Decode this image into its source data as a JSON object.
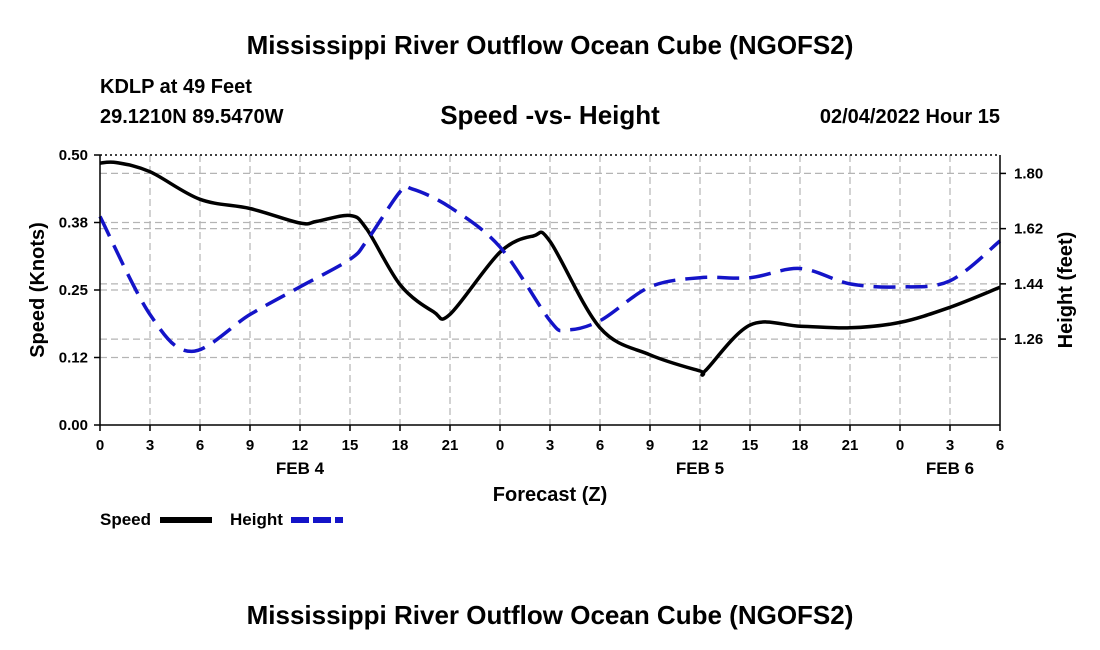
{
  "header": {
    "title": "Mississippi River Outflow Ocean Cube (NGOFS2)",
    "station": "KDLP at 49 Feet",
    "coords": "29.1210N  89.5470W",
    "subtitle": "Speed -vs- Height",
    "datetime": "02/04/2022 Hour 15"
  },
  "footer": {
    "title": "Mississippi River Outflow Ocean Cube (NGOFS2)"
  },
  "legend": {
    "speed_label": "Speed",
    "height_label": "Height"
  },
  "colors": {
    "speed": "#000000",
    "height": "#1414c8",
    "grid": "#b4b4b4",
    "axis": "#000000"
  },
  "chart_data": {
    "type": "line",
    "xlabel": "Forecast (Z)",
    "ylabel_left": "Speed (Knots)",
    "ylabel_right": "Height (feet)",
    "x_range": [
      0,
      54
    ],
    "x_tick_labels": [
      "0",
      "3",
      "6",
      "9",
      "12",
      "15",
      "18",
      "21",
      "0",
      "3",
      "6",
      "9",
      "12",
      "15",
      "18",
      "21",
      "0",
      "3",
      "6"
    ],
    "date_labels": [
      {
        "label": "FEB 4",
        "x": 12
      },
      {
        "label": "FEB 5",
        "x": 36
      },
      {
        "label": "FEB 6",
        "x": 51
      }
    ],
    "ylim_left": [
      0,
      0.5
    ],
    "y_ticks_left": [
      {
        "value": 0.0,
        "label": "0.00"
      },
      {
        "value": 0.125,
        "label": "0.12"
      },
      {
        "value": 0.25,
        "label": "0.25"
      },
      {
        "value": 0.375,
        "label": "0.38"
      },
      {
        "value": 0.5,
        "label": "0.50"
      }
    ],
    "ylim_right": [
      0.98,
      1.86
    ],
    "y_ticks_right": [
      {
        "value": 1.26,
        "label": "1.26"
      },
      {
        "value": 1.44,
        "label": "1.44"
      },
      {
        "value": 1.62,
        "label": "1.62"
      },
      {
        "value": 1.8,
        "label": "1.80"
      }
    ],
    "series": [
      {
        "name": "Speed",
        "axis": "left",
        "style": "solid",
        "x": [
          0,
          1,
          3,
          6,
          9,
          12,
          13,
          15,
          16,
          18,
          20,
          21,
          24,
          26,
          27,
          30,
          33,
          36,
          36.3,
          39,
          42,
          45,
          48,
          51,
          54
        ],
        "y": [
          0.485,
          0.486,
          0.469,
          0.418,
          0.401,
          0.374,
          0.377,
          0.388,
          0.363,
          0.26,
          0.21,
          0.205,
          0.32,
          0.35,
          0.34,
          0.18,
          0.13,
          0.1,
          0.1,
          0.185,
          0.183,
          0.18,
          0.19,
          0.218,
          0.255
        ]
      },
      {
        "name": "Height",
        "axis": "right",
        "style": "dashed",
        "x": [
          0,
          3,
          5.5,
          9,
          12,
          15,
          16,
          18,
          18.7,
          21,
          24,
          27,
          28,
          30,
          33,
          36,
          39,
          42,
          45,
          48,
          51,
          54
        ],
        "y": [
          1.66,
          1.34,
          1.22,
          1.34,
          1.43,
          1.52,
          1.58,
          1.74,
          1.75,
          1.69,
          1.56,
          1.32,
          1.29,
          1.32,
          1.43,
          1.46,
          1.46,
          1.49,
          1.44,
          1.43,
          1.45,
          1.58
        ]
      }
    ]
  }
}
